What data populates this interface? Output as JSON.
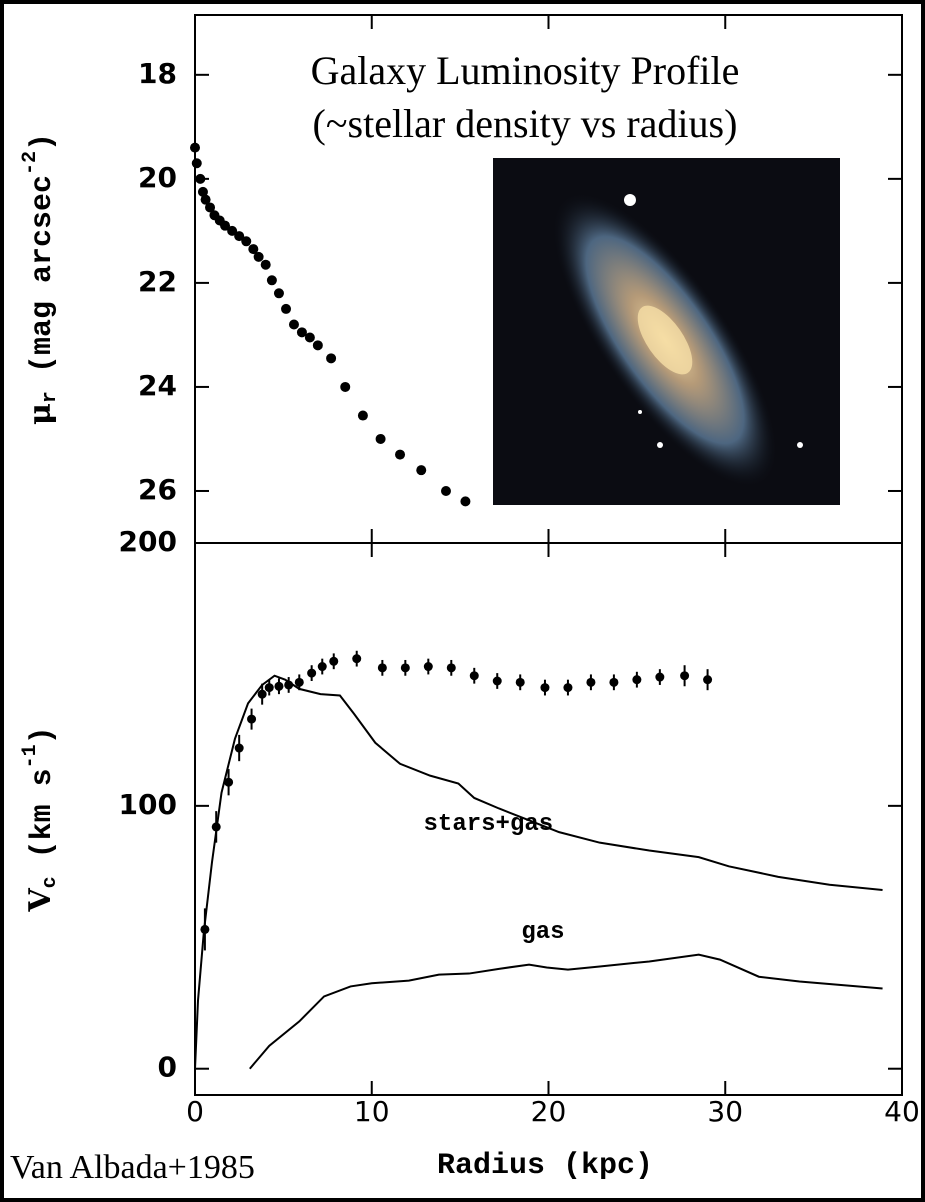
{
  "chart_data": [
    {
      "type": "scatter",
      "title": [
        "Galaxy Luminosity Profile",
        "(~stellar density vs radius)"
      ],
      "ylabel": [
        "μ",
        "r",
        " (mag arcsec",
        "-2",
        ")"
      ],
      "x": [
        0,
        0.1,
        0.3,
        0.45,
        0.6,
        0.85,
        1.1,
        1.4,
        1.7,
        2.1,
        2.5,
        2.9,
        3.3,
        3.6,
        4.0,
        4.35,
        4.75,
        5.15,
        5.6,
        6.05,
        6.5,
        6.95,
        7.7,
        8.5,
        9.5,
        10.5,
        11.6,
        12.8,
        14.2,
        15.3
      ],
      "values": [
        19.4,
        19.7,
        20.0,
        20.25,
        20.4,
        20.55,
        20.7,
        20.8,
        20.9,
        21.0,
        21.1,
        21.2,
        21.35,
        21.5,
        21.65,
        21.95,
        22.2,
        22.5,
        22.8,
        22.95,
        23.05,
        23.2,
        23.45,
        24.0,
        24.55,
        25.0,
        25.3,
        25.6,
        26.0,
        26.2
      ],
      "color": "#000000",
      "xlim": [
        0,
        40
      ],
      "xticks": [
        0,
        10,
        20,
        30,
        40
      ],
      "ylim": [
        27.0,
        16.85
      ],
      "yticks": [
        18,
        20,
        22,
        24,
        26
      ]
    },
    {
      "type": "line",
      "xlabel": "Radius (kpc)",
      "ylabel": [
        "V",
        "c",
        " (km s",
        "-1",
        ")"
      ],
      "note": "Van Albada+1985",
      "points": {
        "color": "#000000",
        "x": [
          0.56,
          1.2,
          1.9,
          2.5,
          3.2,
          3.8,
          4.2,
          4.75,
          5.3,
          5.9,
          6.6,
          7.2,
          7.85,
          9.15,
          10.6,
          11.9,
          13.2,
          14.5,
          15.8,
          17.1,
          18.4,
          19.8,
          21.1,
          22.4,
          23.7,
          25.0,
          26.3,
          27.7,
          29.0
        ],
        "values": [
          53,
          92,
          109,
          122,
          133,
          142.5,
          145,
          145.5,
          146,
          147,
          150.5,
          153,
          155,
          156,
          152.5,
          152.5,
          153,
          152.5,
          149.5,
          147.5,
          147,
          145,
          145,
          147,
          147,
          148,
          149,
          149.5,
          148
        ],
        "errors": [
          8,
          6,
          5,
          5,
          4,
          4,
          3,
          3,
          3,
          3,
          3,
          3,
          3,
          3,
          3,
          3,
          3,
          3,
          3,
          3,
          3,
          3,
          3,
          3,
          3,
          3,
          3,
          4,
          4
        ]
      },
      "series": [
        {
          "name": "stars+gas",
          "color": "#000000",
          "x": [
            0,
            0.17,
            0.5,
            0.96,
            1.5,
            2.26,
            3.0,
            3.8,
            4.5,
            5.1,
            5.9,
            7.1,
            8.2,
            9.0,
            10.2,
            11.6,
            13.3,
            14.9,
            15.8,
            17.2,
            18.9,
            20.6,
            22.9,
            25.7,
            28.5,
            30.2,
            33.0,
            35.9,
            38.9
          ],
          "values": [
            0,
            26,
            52,
            78.5,
            105,
            125.5,
            139,
            146,
            149.5,
            148,
            144.5,
            142.5,
            142,
            135,
            124,
            116,
            111.5,
            108.5,
            103,
            99,
            94.5,
            90,
            86,
            83,
            80.5,
            77,
            73,
            70,
            68
          ]
        },
        {
          "name": "gas",
          "color": "#000000",
          "x": [
            3.1,
            4.2,
            5.9,
            7.3,
            8.8,
            10.0,
            12.1,
            13.8,
            15.5,
            17.2,
            18.9,
            19.9,
            21.1,
            22.9,
            25.7,
            28.5,
            29.7,
            31.9,
            34.2,
            38.9
          ],
          "values": [
            0,
            8.7,
            18,
            27.5,
            31.3,
            32.5,
            33.5,
            35.8,
            36.2,
            38,
            39.6,
            38.5,
            37.7,
            38.9,
            40.8,
            43.4,
            41.5,
            35,
            33.2,
            30.5
          ]
        }
      ],
      "xlim": [
        0,
        40
      ],
      "xticks": [
        0,
        10,
        20,
        30,
        40
      ],
      "ylim": [
        -10,
        200
      ],
      "yticks": [
        0,
        100,
        200
      ]
    }
  ]
}
